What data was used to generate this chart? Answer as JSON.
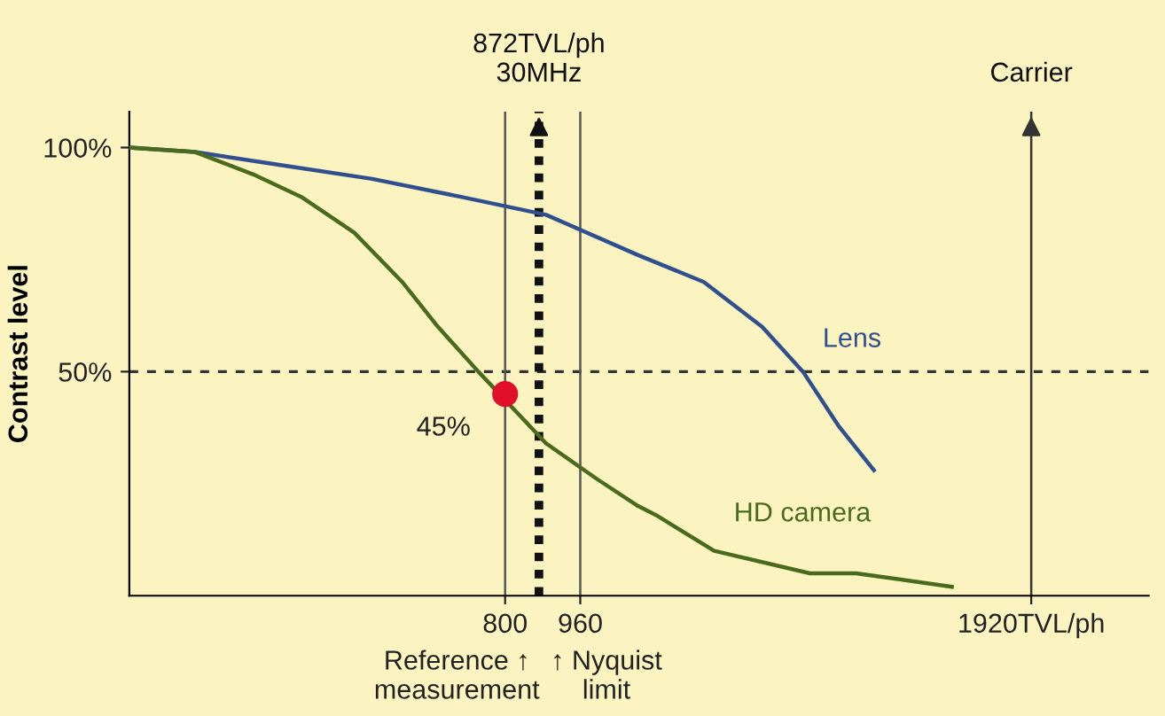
{
  "chart_data": {
    "type": "line",
    "ylabel": "Contrast level",
    "xlim": [
      0,
      2170
    ],
    "ylim": [
      0,
      108
    ],
    "xticks": [
      800,
      960,
      {
        "value": 1920,
        "label": "1920TVL/ph"
      }
    ],
    "yticks": [
      {
        "value": 100,
        "label": "100%"
      },
      {
        "value": 50,
        "label": "50%"
      }
    ],
    "grid": false,
    "legend": false,
    "marker": "none",
    "line_style": "solid",
    "series": [
      {
        "name": "Lens",
        "color": "#2f4f8f",
        "x": [
          0,
          140,
          328,
          517,
          706,
          887,
          1083,
          1223,
          1347,
          1434,
          1509,
          1585
        ],
        "values": [
          100,
          99,
          96,
          93,
          89,
          85,
          76,
          70,
          60,
          50,
          38,
          28
        ]
      },
      {
        "name": "HD camera",
        "color": "#4a6a1e",
        "x": [
          0,
          140,
          264,
          366,
          479,
          581,
          657,
          743,
          887,
          996,
          1083,
          1121,
          1245,
          1449,
          1547,
          1751
        ],
        "values": [
          100,
          99,
          94,
          89,
          81,
          70,
          60,
          50,
          34,
          26,
          20,
          18,
          10,
          5,
          5,
          2
        ]
      },
      {
        "type": "scatter",
        "marker": "circle",
        "color": "#e0102a",
        "x": [
          800
        ],
        "values": [
          45
        ],
        "value_labels": [
          "45%"
        ]
      }
    ],
    "ref_lines": [
      {
        "axis": "y",
        "value": 50,
        "line_style": "dashed",
        "color": "#333333"
      },
      {
        "axis": "x",
        "value": 800,
        "line_style": "solid",
        "color": "#555555"
      },
      {
        "axis": "x",
        "value": 960,
        "line_style": "solid",
        "color": "#555555"
      },
      {
        "axis": "x",
        "value": 872,
        "line_style": "dotted",
        "color": "#111111",
        "label": "872TVL/ph\n30MHz"
      },
      {
        "axis": "x",
        "value": 1920,
        "line_style": "solid",
        "color": "#333333",
        "label": "Carrier"
      }
    ],
    "annotations": [
      {
        "text": "Reference ↑\nmeasurement",
        "x": 800,
        "y": 0
      },
      {
        "text": "↑ Nyquist\nlimit",
        "x": 960,
        "y": 0
      }
    ]
  }
}
